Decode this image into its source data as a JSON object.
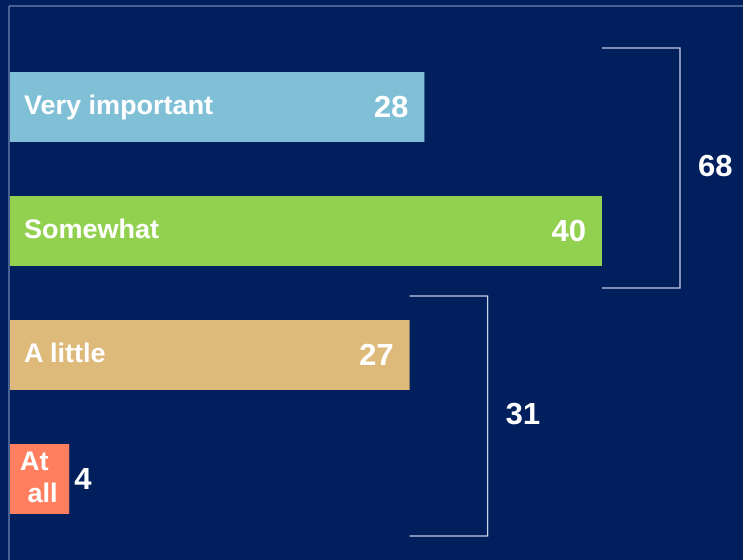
{
  "chart_data": {
    "type": "bar",
    "orientation": "horizontal",
    "categories": [
      "Very important",
      "Somewhat",
      "A little",
      "At all"
    ],
    "values": [
      28,
      40,
      27,
      4
    ],
    "colors": [
      "#7fc0d6",
      "#92d050",
      "#ddb97a",
      "#ff7f5f"
    ],
    "group_totals": [
      68,
      31
    ]
  }
}
